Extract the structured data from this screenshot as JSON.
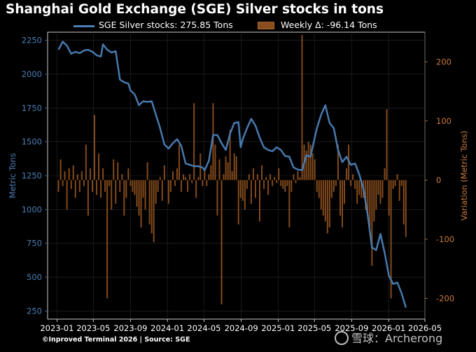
{
  "title": "Shanghai Gold Exchange (SGE) Silver stocks in tons",
  "legend": {
    "line_label": "SGE Silver stocks: 275.85 Tons",
    "bar_label": "Weekly Δ: -96.14 Tons"
  },
  "footer": "©Inproved Terminal 2026 | Source: SGE",
  "watermark": "雪球：Archerong",
  "colors": {
    "line": "#4a7fb7",
    "bar": "#8a4e1e",
    "left_axis": "#4a7fb7",
    "right_axis": "#c87a3e",
    "background": "#000000"
  },
  "chart_data": {
    "type": "bar+line",
    "title": "Shanghai Gold Exchange (SGE) Silver stocks in tons",
    "xlabel": "",
    "ylabel": "Metric Tons",
    "y2label": "Variation (Metric Tons)",
    "ylim": [
      190,
      2310
    ],
    "y2lim": [
      -235,
      250
    ],
    "xlim": [
      "2022-12-01",
      "2026-05-01"
    ],
    "yticks": [
      250,
      500,
      750,
      1000,
      1250,
      1500,
      1750,
      2000,
      2250
    ],
    "y2ticks": [
      -200,
      -100,
      0,
      100,
      200
    ],
    "xticks": [
      "2023-01",
      "2023-05",
      "2023-09",
      "2024-01",
      "2024-05",
      "2024-09",
      "2025-01",
      "2025-05",
      "2025-09",
      "2026-01",
      "2026-05"
    ],
    "grid": true,
    "legend_position": "top",
    "series": [
      {
        "name": "SGE Silver stocks: 275.85 Tons",
        "kind": "line",
        "axis": "left",
        "points": [
          [
            "2023-01-06",
            2180
          ],
          [
            "2023-01-20",
            2240
          ],
          [
            "2023-02-03",
            2210
          ],
          [
            "2023-02-17",
            2150
          ],
          [
            "2023-03-03",
            2165
          ],
          [
            "2023-03-17",
            2155
          ],
          [
            "2023-03-31",
            2175
          ],
          [
            "2023-04-14",
            2180
          ],
          [
            "2023-04-28",
            2165
          ],
          [
            "2023-05-12",
            2140
          ],
          [
            "2023-05-26",
            2130
          ],
          [
            "2023-06-02",
            2220
          ],
          [
            "2023-06-16",
            2180
          ],
          [
            "2023-06-30",
            2160
          ],
          [
            "2023-07-14",
            2170
          ],
          [
            "2023-07-28",
            1960
          ],
          [
            "2023-08-11",
            1940
          ],
          [
            "2023-08-25",
            1930
          ],
          [
            "2023-09-01",
            1880
          ],
          [
            "2023-09-15",
            1850
          ],
          [
            "2023-09-29",
            1770
          ],
          [
            "2023-10-13",
            1800
          ],
          [
            "2023-10-27",
            1795
          ],
          [
            "2023-11-10",
            1800
          ],
          [
            "2023-11-24",
            1700
          ],
          [
            "2023-12-08",
            1600
          ],
          [
            "2023-12-22",
            1480
          ],
          [
            "2024-01-05",
            1450
          ],
          [
            "2024-01-19",
            1490
          ],
          [
            "2024-02-02",
            1520
          ],
          [
            "2024-02-16",
            1470
          ],
          [
            "2024-03-01",
            1340
          ],
          [
            "2024-03-15",
            1330
          ],
          [
            "2024-03-29",
            1320
          ],
          [
            "2024-04-12",
            1320
          ],
          [
            "2024-04-26",
            1310
          ],
          [
            "2024-05-03",
            1290
          ],
          [
            "2024-05-17",
            1360
          ],
          [
            "2024-05-31",
            1550
          ],
          [
            "2024-06-14",
            1550
          ],
          [
            "2024-06-28",
            1490
          ],
          [
            "2024-07-12",
            1440
          ],
          [
            "2024-07-26",
            1560
          ],
          [
            "2024-08-09",
            1640
          ],
          [
            "2024-08-23",
            1645
          ],
          [
            "2024-08-30",
            1460
          ],
          [
            "2024-09-06",
            1520
          ],
          [
            "2024-09-20",
            1600
          ],
          [
            "2024-10-04",
            1670
          ],
          [
            "2024-10-18",
            1620
          ],
          [
            "2024-11-01",
            1530
          ],
          [
            "2024-11-15",
            1460
          ],
          [
            "2024-11-29",
            1440
          ],
          [
            "2024-12-13",
            1430
          ],
          [
            "2024-12-27",
            1460
          ],
          [
            "2025-01-10",
            1440
          ],
          [
            "2025-01-24",
            1395
          ],
          [
            "2025-02-07",
            1390
          ],
          [
            "2025-02-21",
            1310
          ],
          [
            "2025-03-07",
            1295
          ],
          [
            "2025-03-21",
            1290
          ],
          [
            "2025-04-04",
            1400
          ],
          [
            "2025-04-18",
            1390
          ],
          [
            "2025-04-25",
            1460
          ],
          [
            "2025-05-09",
            1600
          ],
          [
            "2025-05-23",
            1700
          ],
          [
            "2025-06-06",
            1770
          ],
          [
            "2025-06-20",
            1640
          ],
          [
            "2025-07-04",
            1600
          ],
          [
            "2025-07-18",
            1440
          ],
          [
            "2025-08-01",
            1350
          ],
          [
            "2025-08-15",
            1390
          ],
          [
            "2025-08-29",
            1330
          ],
          [
            "2025-09-12",
            1340
          ],
          [
            "2025-09-26",
            1260
          ],
          [
            "2025-10-10",
            1150
          ],
          [
            "2025-10-24",
            960
          ],
          [
            "2025-11-07",
            720
          ],
          [
            "2025-11-21",
            700
          ],
          [
            "2025-12-05",
            820
          ],
          [
            "2025-12-19",
            680
          ],
          [
            "2026-01-02",
            510
          ],
          [
            "2026-01-16",
            450
          ],
          [
            "2026-01-30",
            460
          ],
          [
            "2026-02-13",
            380
          ],
          [
            "2026-02-27",
            275.85
          ]
        ]
      },
      {
        "name": "Weekly Δ: -96.14 Tons",
        "kind": "bar",
        "axis": "right",
        "points": [
          [
            "2023-01-06",
            -20
          ],
          [
            "2023-01-13",
            35
          ],
          [
            "2023-01-20",
            -10
          ],
          [
            "2023-01-27",
            15
          ],
          [
            "2023-02-03",
            -50
          ],
          [
            "2023-02-10",
            20
          ],
          [
            "2023-02-17",
            -15
          ],
          [
            "2023-02-24",
            25
          ],
          [
            "2023-03-03",
            -30
          ],
          [
            "2023-03-10",
            10
          ],
          [
            "2023-03-17",
            -20
          ],
          [
            "2023-03-24",
            15
          ],
          [
            "2023-03-31",
            -10
          ],
          [
            "2023-04-07",
            60
          ],
          [
            "2023-04-14",
            -60
          ],
          [
            "2023-04-21",
            20
          ],
          [
            "2023-04-28",
            -20
          ],
          [
            "2023-05-05",
            110
          ],
          [
            "2023-05-12",
            -25
          ],
          [
            "2023-05-19",
            45
          ],
          [
            "2023-05-26",
            -30
          ],
          [
            "2023-06-02",
            20
          ],
          [
            "2023-06-09",
            -20
          ],
          [
            "2023-06-16",
            -200
          ],
          [
            "2023-06-23",
            -10
          ],
          [
            "2023-06-30",
            -50
          ],
          [
            "2023-07-07",
            35
          ],
          [
            "2023-07-14",
            -40
          ],
          [
            "2023-07-21",
            30
          ],
          [
            "2023-07-28",
            -20
          ],
          [
            "2023-08-04",
            10
          ],
          [
            "2023-08-11",
            -60
          ],
          [
            "2023-08-18",
            -30
          ],
          [
            "2023-08-25",
            20
          ],
          [
            "2023-09-01",
            -10
          ],
          [
            "2023-09-08",
            -20
          ],
          [
            "2023-09-15",
            -25
          ],
          [
            "2023-09-22",
            -45
          ],
          [
            "2023-09-29",
            -60
          ],
          [
            "2023-10-06",
            -80
          ],
          [
            "2023-10-13",
            -30
          ],
          [
            "2023-10-20",
            -50
          ],
          [
            "2023-10-27",
            30
          ],
          [
            "2023-11-03",
            -75
          ],
          [
            "2023-11-10",
            -90
          ],
          [
            "2023-11-17",
            -105
          ],
          [
            "2023-11-24",
            -40
          ],
          [
            "2023-12-01",
            -20
          ],
          [
            "2023-12-08",
            5
          ],
          [
            "2023-12-15",
            -35
          ],
          [
            "2023-12-22",
            25
          ],
          [
            "2024-01-05",
            -40
          ],
          [
            "2024-01-12",
            -20
          ],
          [
            "2024-01-19",
            15
          ],
          [
            "2024-01-26",
            -10
          ],
          [
            "2024-02-02",
            20
          ],
          [
            "2024-02-09",
            60
          ],
          [
            "2024-02-16",
            -20
          ],
          [
            "2024-02-23",
            10
          ],
          [
            "2024-03-01",
            5
          ],
          [
            "2024-03-08",
            -20
          ],
          [
            "2024-03-15",
            10
          ],
          [
            "2024-03-22",
            -5
          ],
          [
            "2024-03-29",
            130
          ],
          [
            "2024-04-05",
            -30
          ],
          [
            "2024-04-12",
            5
          ],
          [
            "2024-04-19",
            45
          ],
          [
            "2024-04-26",
            -10
          ],
          [
            "2024-05-03",
            20
          ],
          [
            "2024-05-10",
            -10
          ],
          [
            "2024-05-17",
            10
          ],
          [
            "2024-05-24",
            25
          ],
          [
            "2024-05-31",
            130
          ],
          [
            "2024-06-07",
            60
          ],
          [
            "2024-06-14",
            -60
          ],
          [
            "2024-06-21",
            35
          ],
          [
            "2024-06-28",
            -210
          ],
          [
            "2024-07-05",
            10
          ],
          [
            "2024-07-12",
            40
          ],
          [
            "2024-07-19",
            30
          ],
          [
            "2024-07-26",
            85
          ],
          [
            "2024-08-02",
            15
          ],
          [
            "2024-08-09",
            45
          ],
          [
            "2024-08-16",
            40
          ],
          [
            "2024-08-23",
            -75
          ],
          [
            "2024-08-30",
            -30
          ],
          [
            "2024-09-06",
            -35
          ],
          [
            "2024-09-13",
            -50
          ],
          [
            "2024-09-20",
            -15
          ],
          [
            "2024-09-27",
            10
          ],
          [
            "2024-10-04",
            -40
          ],
          [
            "2024-10-11",
            20
          ],
          [
            "2024-10-18",
            -30
          ],
          [
            "2024-10-25",
            10
          ],
          [
            "2024-11-01",
            -70
          ],
          [
            "2024-11-08",
            25
          ],
          [
            "2024-11-15",
            -15
          ],
          [
            "2024-11-22",
            5
          ],
          [
            "2024-11-29",
            -25
          ],
          [
            "2024-12-06",
            10
          ],
          [
            "2024-12-13",
            -10
          ],
          [
            "2024-12-20",
            5
          ],
          [
            "2024-12-27",
            -5
          ],
          [
            "2025-01-03",
            20
          ],
          [
            "2025-01-10",
            -10
          ],
          [
            "2025-01-17",
            -15
          ],
          [
            "2025-01-24",
            -20
          ],
          [
            "2025-01-31",
            -10
          ],
          [
            "2025-02-07",
            -80
          ],
          [
            "2025-02-14",
            -20
          ],
          [
            "2025-02-21",
            10
          ],
          [
            "2025-02-28",
            -5
          ],
          [
            "2025-03-07",
            15
          ],
          [
            "2025-03-14",
            5
          ],
          [
            "2025-03-21",
            245
          ],
          [
            "2025-03-28",
            60
          ],
          [
            "2025-04-04",
            50
          ],
          [
            "2025-04-11",
            65
          ],
          [
            "2025-04-18",
            60
          ],
          [
            "2025-04-25",
            45
          ],
          [
            "2025-05-02",
            35
          ],
          [
            "2025-05-09",
            -20
          ],
          [
            "2025-05-16",
            -30
          ],
          [
            "2025-05-23",
            -50
          ],
          [
            "2025-05-30",
            -60
          ],
          [
            "2025-06-06",
            -70
          ],
          [
            "2025-06-13",
            -90
          ],
          [
            "2025-06-20",
            -80
          ],
          [
            "2025-06-27",
            -30
          ],
          [
            "2025-07-04",
            -20
          ],
          [
            "2025-07-11",
            -10
          ],
          [
            "2025-07-18",
            60
          ],
          [
            "2025-07-25",
            -60
          ],
          [
            "2025-08-01",
            -80
          ],
          [
            "2025-08-08",
            -40
          ],
          [
            "2025-08-15",
            20
          ],
          [
            "2025-08-22",
            60
          ],
          [
            "2025-08-29",
            -10
          ],
          [
            "2025-09-05",
            10
          ],
          [
            "2025-09-12",
            -15
          ],
          [
            "2025-09-19",
            -40
          ],
          [
            "2025-09-26",
            -25
          ],
          [
            "2025-10-03",
            -30
          ],
          [
            "2025-10-10",
            -30
          ],
          [
            "2025-10-17",
            -50
          ],
          [
            "2025-10-24",
            -60
          ],
          [
            "2025-10-31",
            -80
          ],
          [
            "2025-11-07",
            -145
          ],
          [
            "2025-11-14",
            -70
          ],
          [
            "2025-11-21",
            -50
          ],
          [
            "2025-11-28",
            -25
          ],
          [
            "2025-12-05",
            -40
          ],
          [
            "2025-12-12",
            -30
          ],
          [
            "2025-12-19",
            20
          ],
          [
            "2025-12-26",
            120
          ],
          [
            "2026-01-02",
            -60
          ],
          [
            "2026-01-09",
            -200
          ],
          [
            "2026-01-16",
            -15
          ],
          [
            "2026-01-23",
            -10
          ],
          [
            "2026-01-30",
            10
          ],
          [
            "2026-02-06",
            -35
          ],
          [
            "2026-02-13",
            -10
          ],
          [
            "2026-02-20",
            -75
          ],
          [
            "2026-02-27",
            -96.14
          ]
        ]
      }
    ]
  }
}
